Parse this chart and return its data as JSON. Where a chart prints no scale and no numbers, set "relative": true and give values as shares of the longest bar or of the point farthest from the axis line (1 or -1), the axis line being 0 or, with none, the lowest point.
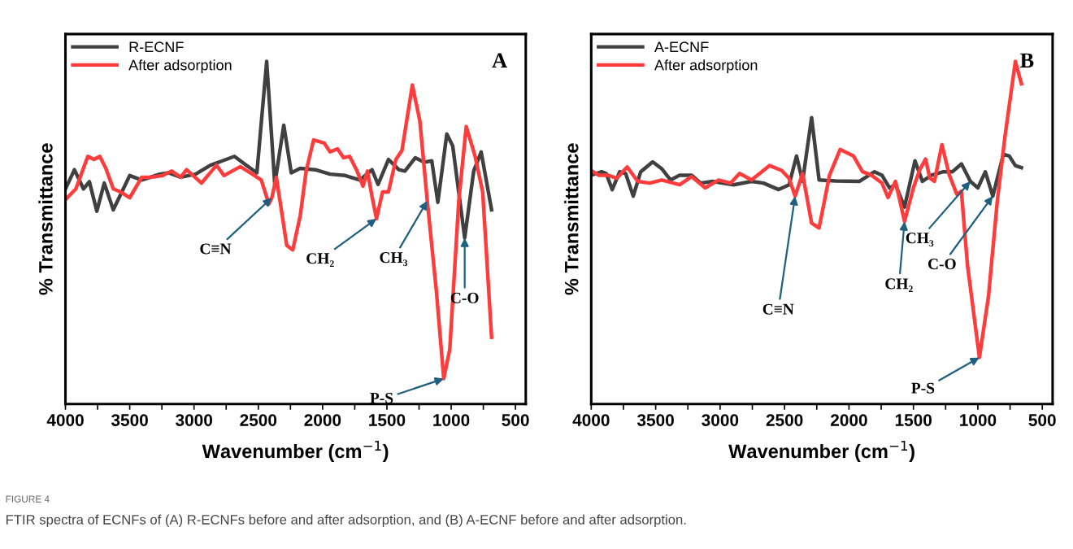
{
  "chart_data": [
    {
      "type": "line",
      "title": "A",
      "ylabel": "% Transmittance",
      "xlabel": "Wavenumber (cm$^{−1}$)",
      "relative": true,
      "legend": "top left",
      "grid": false,
      "xlim": [
        4000,
        420
      ],
      "xticks": [
        4000,
        {
          "value": 3750,
          "label": null
        },
        3500,
        {
          "value": 3250,
          "label": null
        },
        3000,
        {
          "value": 2750,
          "label": null
        },
        2500,
        {
          "value": 2250,
          "label": null
        },
        2000,
        {
          "value": 1750,
          "label": null
        },
        1500,
        {
          "value": 1250,
          "label": null
        },
        1000,
        {
          "value": 750,
          "label": null
        },
        500
      ],
      "series": [
        {
          "name": "R-ECNF",
          "color": "#404040",
          "x": [
            4000,
            3930,
            3860,
            3814,
            3756,
            3698,
            3628,
            3500,
            3407,
            3267,
            3198,
            3104,
            2988,
            2872,
            2779,
            2686,
            2593,
            2511,
            2435,
            2372,
            2302,
            2244,
            2174,
            2058,
            1942,
            1825,
            1709,
            1616,
            1569,
            1488,
            1407,
            1360,
            1279,
            1209,
            1151,
            1104,
            1034,
            988,
            895,
            825,
            767,
            686
          ],
          "values": [
            0.628,
            0.684,
            0.628,
            0.649,
            0.563,
            0.645,
            0.567,
            0.667,
            0.654,
            0.671,
            0.675,
            0.662,
            0.671,
            0.697,
            0.71,
            0.723,
            0.697,
            0.675,
            1.0,
            0.641,
            0.814,
            0.675,
            0.688,
            0.684,
            0.671,
            0.667,
            0.654,
            0.684,
            0.641,
            0.714,
            0.684,
            0.68,
            0.719,
            0.706,
            0.71,
            0.589,
            0.788,
            0.753,
            0.485,
            0.68,
            0.736,
            0.567
          ]
        },
        {
          "name": "After adsorption",
          "color": "#ff3b3b",
          "x": [
            4000,
            3919,
            3826,
            3779,
            3733,
            3686,
            3628,
            3570,
            3500,
            3407,
            3337,
            3244,
            3174,
            3104,
            3058,
            2942,
            2825,
            2767,
            2640,
            2546,
            2477,
            2418,
            2395,
            2360,
            2314,
            2279,
            2232,
            2174,
            2128,
            2070,
            1988,
            1942,
            1884,
            1837,
            1790,
            1732,
            1686,
            1651,
            1616,
            1581,
            1534,
            1488,
            1430,
            1383,
            1302,
            1244,
            1186,
            1116,
            1058,
            1011,
            941,
            883,
            814,
            755,
            686
          ],
          "values": [
            0.597,
            0.628,
            0.723,
            0.714,
            0.723,
            0.688,
            0.628,
            0.619,
            0.602,
            0.662,
            0.662,
            0.667,
            0.68,
            0.662,
            0.684,
            0.645,
            0.697,
            0.667,
            0.693,
            0.671,
            0.654,
            0.584,
            0.602,
            0.662,
            0.55,
            0.463,
            0.45,
            0.55,
            0.68,
            0.771,
            0.762,
            0.736,
            0.745,
            0.719,
            0.723,
            0.68,
            0.636,
            0.68,
            0.606,
            0.541,
            0.619,
            0.619,
            0.714,
            0.74,
            0.931,
            0.827,
            0.593,
            0.333,
            0.074,
            0.16,
            0.593,
            0.81,
            0.723,
            0.619,
            0.195
          ]
        }
      ],
      "annotations": [
        {
          "text": "C≡N",
          "x": 2395,
          "y": 0.602
        },
        {
          "text": "CH₂",
          "x": 1581,
          "y": 0.541
        },
        {
          "text": "CH₃",
          "x": 1186,
          "y": 0.593
        },
        {
          "text": "C-O",
          "x": 895,
          "y": 0.485
        },
        {
          "text": "P-S",
          "x": 1058,
          "y": 0.074
        },
        "FIGURE 4",
        "FTIR spectra of ECNFs of (A) R-ECNFs before and after adsorption, and (B) A-ECNF before and after adsorption."
      ]
    },
    {
      "type": "line",
      "title": "B",
      "ylabel": "% Transmittance",
      "xlabel": "Wavenumber (cm$^{−1}$)",
      "relative": true,
      "legend": "top left",
      "grid": false,
      "xlim": [
        4000,
        420
      ],
      "xticks": [
        4000,
        {
          "value": 3750,
          "label": null
        },
        3500,
        {
          "value": 3250,
          "label": null
        },
        3000,
        {
          "value": 2750,
          "label": null
        },
        2500,
        {
          "value": 2250,
          "label": null
        },
        2000,
        {
          "value": 1750,
          "label": null
        },
        1500,
        {
          "value": 1250,
          "label": null
        },
        1000,
        {
          "value": 750,
          "label": null
        },
        500
      ],
      "series": [
        {
          "name": "A-ECNF",
          "color": "#404040",
          "x": [
            4000,
            3919,
            3884,
            3837,
            3779,
            3733,
            3674,
            3616,
            3523,
            3453,
            3384,
            3314,
            3221,
            3151,
            3058,
            2895,
            2756,
            2663,
            2546,
            2465,
            2407,
            2360,
            2290,
            2232,
            2104,
            1918,
            1802,
            1744,
            1686,
            1639,
            1569,
            1488,
            1430,
            1360,
            1267,
            1197,
            1127,
            1058,
            1000,
            942,
            884,
            802,
            756,
            709,
            662
          ],
          "values": [
            0.668,
            0.678,
            0.673,
            0.626,
            0.678,
            0.673,
            0.607,
            0.678,
            0.707,
            0.687,
            0.654,
            0.668,
            0.668,
            0.645,
            0.65,
            0.64,
            0.65,
            0.645,
            0.626,
            0.64,
            0.724,
            0.65,
            0.836,
            0.654,
            0.651,
            0.65,
            0.678,
            0.668,
            0.631,
            0.64,
            0.575,
            0.71,
            0.65,
            0.668,
            0.678,
            0.678,
            0.701,
            0.65,
            0.631,
            0.678,
            0.607,
            0.729,
            0.724,
            0.696,
            0.69
          ]
        },
        {
          "name": "After adsorption",
          "color": "#ff3b3b",
          "x": [
            4000,
            3942,
            3872,
            3802,
            3721,
            3639,
            3546,
            3453,
            3314,
            3221,
            3116,
            3012,
            2918,
            2849,
            2756,
            2616,
            2523,
            2465,
            2418,
            2360,
            2290,
            2232,
            2151,
            2069,
            1965,
            1895,
            1825,
            1744,
            1697,
            1639,
            1569,
            1500,
            1453,
            1406,
            1372,
            1337,
            1279,
            1221,
            1163,
            1128,
            1081,
            988,
            918,
            849,
            790,
            709,
            662
          ],
          "values": [
            0.682,
            0.668,
            0.668,
            0.659,
            0.692,
            0.65,
            0.645,
            0.654,
            0.64,
            0.664,
            0.631,
            0.654,
            0.645,
            0.673,
            0.654,
            0.696,
            0.682,
            0.659,
            0.607,
            0.673,
            0.528,
            0.514,
            0.668,
            0.743,
            0.724,
            0.678,
            0.668,
            0.645,
            0.603,
            0.65,
            0.533,
            0.631,
            0.682,
            0.715,
            0.659,
            0.65,
            0.757,
            0.668,
            0.612,
            0.621,
            0.407,
            0.136,
            0.313,
            0.593,
            0.78,
            1.0,
            0.935
          ]
        }
      ],
      "annotations": [
        {
          "text": "C≡N",
          "x": 2418,
          "y": 0.607
        },
        {
          "text": "CH₂",
          "x": 1569,
          "y": 0.533
        },
        {
          "text": "CH₃",
          "x": 1058,
          "y": 0.65
        },
        {
          "text": "C-O",
          "x": 884,
          "y": 0.607
        },
        {
          "text": "P-S",
          "x": 988,
          "y": 0.136
        }
      ]
    }
  ]
}
